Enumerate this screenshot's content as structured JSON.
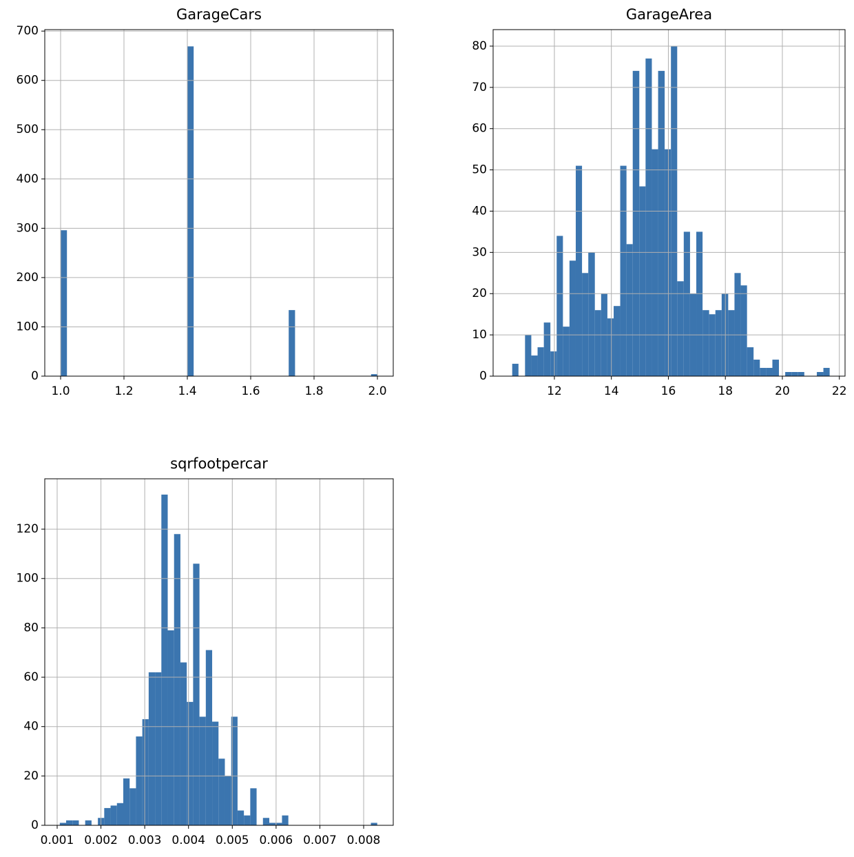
{
  "chart_data": [
    {
      "type": "histogram",
      "title": "GarageCars",
      "color": "#3b75af",
      "grid": true,
      "bins": [
        1,
        1.02,
        1.04,
        1.06,
        1.08,
        1.1,
        1.12,
        1.14,
        1.16,
        1.18,
        1.2,
        1.22,
        1.24,
        1.26,
        1.28,
        1.3,
        1.32,
        1.34,
        1.36,
        1.38,
        1.4,
        1.42,
        1.44,
        1.46,
        1.48,
        1.5,
        1.52,
        1.54,
        1.56,
        1.58,
        1.6,
        1.62,
        1.64,
        1.66,
        1.68,
        1.7,
        1.72,
        1.74,
        1.76,
        1.78,
        1.8,
        1.82,
        1.84,
        1.86,
        1.88,
        1.9,
        1.92,
        1.94,
        1.96,
        1.98,
        2
      ],
      "values": [
        296,
        0,
        0,
        0,
        0,
        0,
        0,
        0,
        0,
        0,
        0,
        0,
        0,
        0,
        0,
        0,
        0,
        0,
        0,
        0,
        669,
        0,
        0,
        0,
        0,
        0,
        0,
        0,
        0,
        0,
        0,
        0,
        0,
        0,
        0,
        0,
        134,
        0,
        0,
        0,
        0,
        0,
        0,
        0,
        0,
        0,
        0,
        0,
        0,
        4
      ],
      "xlim": [
        0.95,
        2.05
      ],
      "ylim": [
        0,
        703
      ],
      "xticks": [
        {
          "value": 1,
          "label": "1.0"
        },
        1.2,
        1.4,
        1.6,
        1.8,
        {
          "value": 2,
          "label": "2.0"
        }
      ],
      "yticks": [
        0,
        100,
        200,
        300,
        400,
        500,
        600,
        700
      ]
    },
    {
      "type": "histogram",
      "title": "GarageArea",
      "color": "#3b75af",
      "grid": true,
      "bins": [
        10.52,
        10.74,
        10.97,
        11.19,
        11.41,
        11.63,
        11.86,
        12.08,
        12.3,
        12.53,
        12.75,
        12.97,
        13.19,
        13.42,
        13.64,
        13.86,
        14.08,
        14.31,
        14.53,
        14.75,
        14.98,
        15.2,
        15.42,
        15.64,
        15.87,
        16.09,
        16.31,
        16.54,
        16.76,
        16.98,
        17.2,
        17.43,
        17.65,
        17.87,
        18.1,
        18.32,
        18.54,
        18.76,
        18.99,
        19.21,
        19.43,
        19.65,
        19.88,
        20.1,
        20.32,
        20.55,
        20.77,
        20.99,
        21.21,
        21.44,
        21.66
      ],
      "values": [
        3,
        0,
        10,
        5,
        7,
        13,
        6,
        34,
        12,
        28,
        51,
        25,
        30,
        16,
        20,
        14,
        17,
        51,
        32,
        74,
        46,
        77,
        55,
        74,
        55,
        80,
        23,
        35,
        20,
        35,
        16,
        15,
        16,
        20,
        16,
        25,
        22,
        7,
        4,
        2,
        2,
        4,
        0,
        1,
        1,
        1,
        0,
        0,
        1,
        2
      ],
      "xlim": [
        9.85,
        22.2
      ],
      "ylim": [
        0,
        84
      ],
      "xticks": [
        12,
        14,
        16,
        18,
        20,
        22
      ],
      "yticks": [
        0,
        10,
        20,
        30,
        40,
        50,
        60,
        70,
        80
      ]
    },
    {
      "type": "histogram",
      "title": "sqrfootpercar",
      "color": "#3b75af",
      "grid": true,
      "bins": [
        0.00106,
        0.001205,
        0.00135,
        0.001495,
        0.00164,
        0.001785,
        0.00193,
        0.002075,
        0.00222,
        0.002365,
        0.00251,
        0.002655,
        0.0028,
        0.002945,
        0.00309,
        0.003235,
        0.00338,
        0.003525,
        0.00367,
        0.003815,
        0.00396,
        0.004105,
        0.00425,
        0.004395,
        0.00454,
        0.004685,
        0.00483,
        0.004975,
        0.00512,
        0.005265,
        0.00541,
        0.005555,
        0.0057,
        0.005845,
        0.00599,
        0.006135,
        0.00628,
        0.006425,
        0.00657,
        0.006715,
        0.00686,
        0.007005,
        0.00715,
        0.007295,
        0.00744,
        0.007585,
        0.00773,
        0.007875,
        0.00802,
        0.008165,
        0.00831
      ],
      "values": [
        1,
        2,
        2,
        0,
        2,
        0,
        3,
        7,
        8,
        9,
        19,
        15,
        36,
        43,
        62,
        62,
        134,
        79,
        118,
        66,
        50,
        106,
        44,
        71,
        42,
        27,
        20,
        44,
        6,
        4,
        15,
        0,
        3,
        1,
        1,
        4,
        0,
        0,
        0,
        0,
        0,
        0,
        0,
        0,
        0,
        0,
        0,
        0,
        0,
        1
      ],
      "xlim": [
        0.000717,
        0.008676
      ],
      "ylim": [
        0,
        140.4
      ],
      "xticks": [
        0.001,
        0.002,
        0.003,
        0.004,
        0.005,
        0.006,
        0.007,
        0.008
      ],
      "yticks": [
        0,
        20,
        40,
        60,
        80,
        100,
        120
      ]
    }
  ]
}
